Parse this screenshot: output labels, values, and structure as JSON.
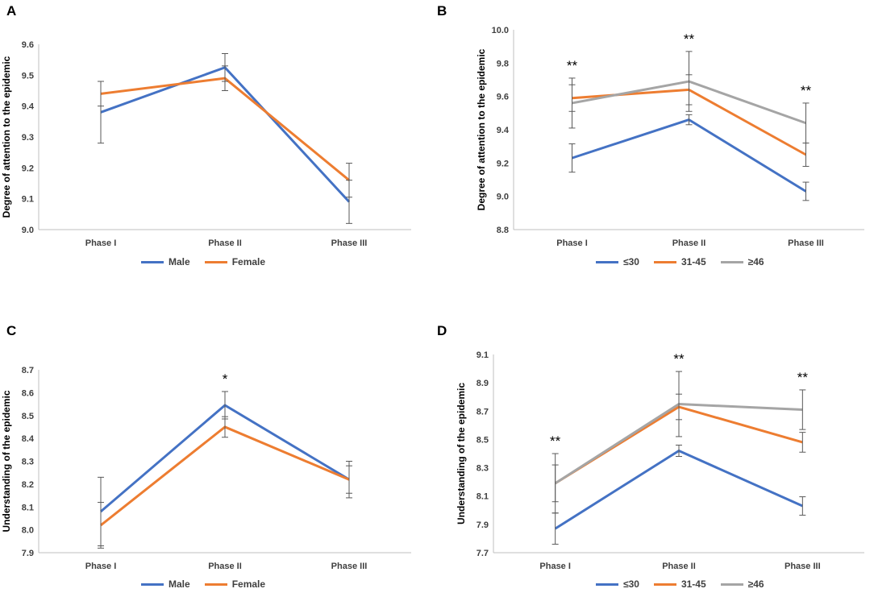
{
  "chart_data": [
    {
      "panel": "A",
      "type": "line",
      "categories": [
        "Phase I",
        "Phase II",
        "Phase III"
      ],
      "ylabel": "Degree of attention to the epidemic",
      "xlabel": "",
      "ylim": [
        9.0,
        9.6
      ],
      "yticks": [
        "9.0",
        "9.1",
        "9.2",
        "9.3",
        "9.4",
        "9.5",
        "9.6"
      ],
      "series": [
        {
          "name": "Male",
          "color": "#4472C4",
          "values": [
            9.38,
            9.525,
            9.09
          ],
          "errors": [
            0.1,
            0.045,
            0.07
          ]
        },
        {
          "name": "Female",
          "color": "#ED7D31",
          "values": [
            9.44,
            9.49,
            9.16
          ],
          "errors": [
            0.04,
            0.04,
            0.055
          ]
        }
      ],
      "annotations": [
        "",
        "",
        ""
      ]
    },
    {
      "panel": "B",
      "type": "line",
      "categories": [
        "Phase I",
        "Phase II",
        "Phase III"
      ],
      "ylabel": "Degree of attention to the epidemic",
      "xlabel": "",
      "ylim": [
        8.8,
        10.0
      ],
      "yticks": [
        "8.8",
        "9.0",
        "9.2",
        "9.4",
        "9.6",
        "9.8",
        "10.0"
      ],
      "series": [
        {
          "name": "≤30",
          "color": "#4472C4",
          "values": [
            9.23,
            9.46,
            9.03
          ],
          "errors": [
            0.085,
            0.03,
            0.055
          ]
        },
        {
          "name": "31-45",
          "color": "#ED7D31",
          "values": [
            9.59,
            9.64,
            9.25
          ],
          "errors": [
            0.08,
            0.09,
            0.07
          ]
        },
        {
          "name": "≥46",
          "color": "#A5A5A5",
          "values": [
            9.56,
            9.69,
            9.44
          ],
          "errors": [
            0.15,
            0.18,
            0.12
          ]
        }
      ],
      "annotations": [
        "**",
        "**",
        "**"
      ]
    },
    {
      "panel": "C",
      "type": "line",
      "categories": [
        "Phase I",
        "Phase II",
        "Phase III"
      ],
      "ylabel": "Understanding of the epidemic",
      "xlabel": "",
      "ylim": [
        7.9,
        8.7
      ],
      "yticks": [
        "7.9",
        "8.0",
        "8.1",
        "8.2",
        "8.3",
        "8.4",
        "8.5",
        "8.6",
        "8.7"
      ],
      "series": [
        {
          "name": "Male",
          "color": "#4472C4",
          "values": [
            8.08,
            8.545,
            8.22
          ],
          "errors": [
            0.15,
            0.06,
            0.08
          ]
        },
        {
          "name": "Female",
          "color": "#ED7D31",
          "values": [
            8.02,
            8.45,
            8.22
          ],
          "errors": [
            0.1,
            0.045,
            0.06
          ]
        }
      ],
      "annotations": [
        "",
        "*",
        ""
      ]
    },
    {
      "panel": "D",
      "type": "line",
      "categories": [
        "Phase I",
        "Phase II",
        "Phase III"
      ],
      "ylabel": "Understanding of the epidemic",
      "xlabel": "",
      "ylim": [
        7.7,
        9.1
      ],
      "yticks": [
        "7.7",
        "7.9",
        "8.1",
        "8.3",
        "8.5",
        "8.7",
        "8.9",
        "9.1"
      ],
      "series": [
        {
          "name": "≤30",
          "color": "#4472C4",
          "values": [
            7.87,
            8.42,
            8.03
          ],
          "errors": [
            0.11,
            0.04,
            0.065
          ]
        },
        {
          "name": "31-45",
          "color": "#ED7D31",
          "values": [
            8.19,
            8.73,
            8.48
          ],
          "errors": [
            0.13,
            0.09,
            0.07
          ]
        },
        {
          "name": "≥46",
          "color": "#A5A5A5",
          "values": [
            8.19,
            8.75,
            8.71
          ],
          "errors": [
            0.21,
            0.23,
            0.14
          ]
        }
      ],
      "annotations": [
        "**",
        "**",
        "**"
      ]
    }
  ]
}
